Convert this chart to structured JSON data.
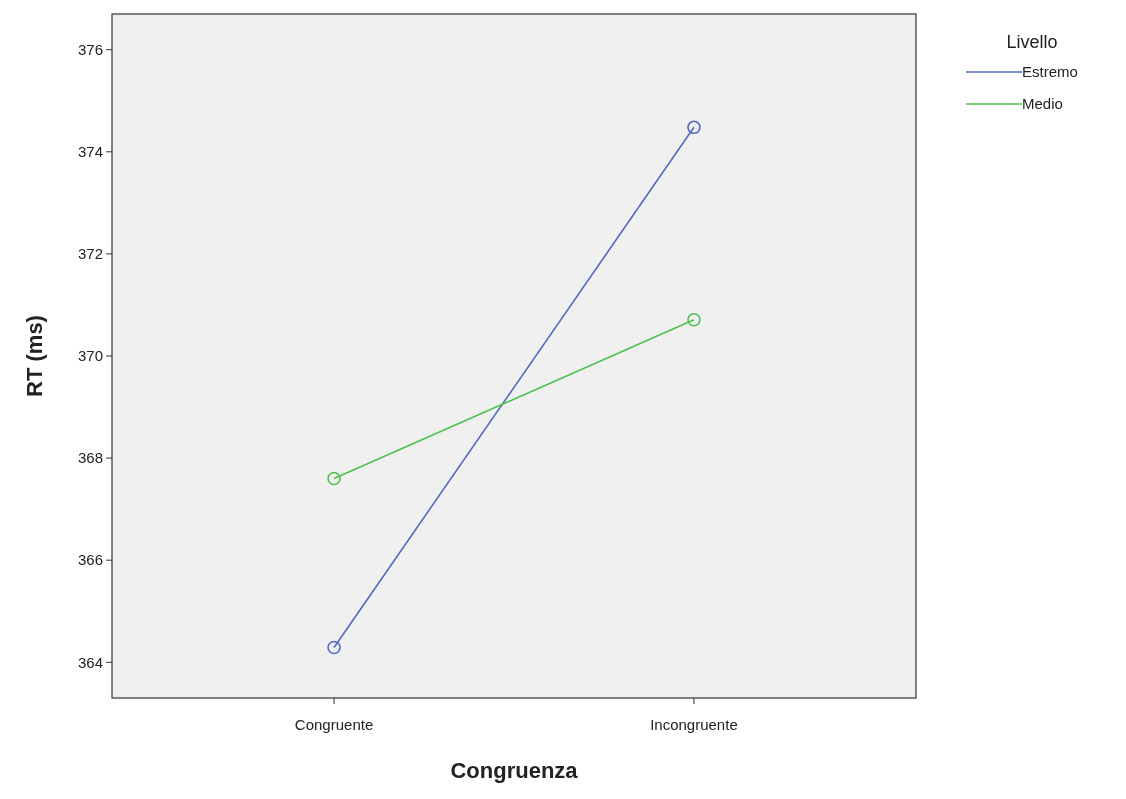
{
  "chart_data": {
    "type": "line",
    "xlabel": "Congruenza",
    "ylabel": "RT (ms)",
    "legend_title": "Livello",
    "categories": [
      "Congruente",
      "Incongruente"
    ],
    "series": [
      {
        "name": "Estremo",
        "color": "#5468c4",
        "values": [
          364.29,
          374.48
        ]
      },
      {
        "name": "Medio",
        "color": "#4cc14c",
        "values": [
          367.6,
          370.71
        ]
      }
    ],
    "ylim": [
      363.3,
      376.7
    ],
    "yticks": [
      364,
      366,
      368,
      370,
      372,
      374,
      376
    ],
    "marker": "circle",
    "legend": "top right",
    "grid": false
  }
}
